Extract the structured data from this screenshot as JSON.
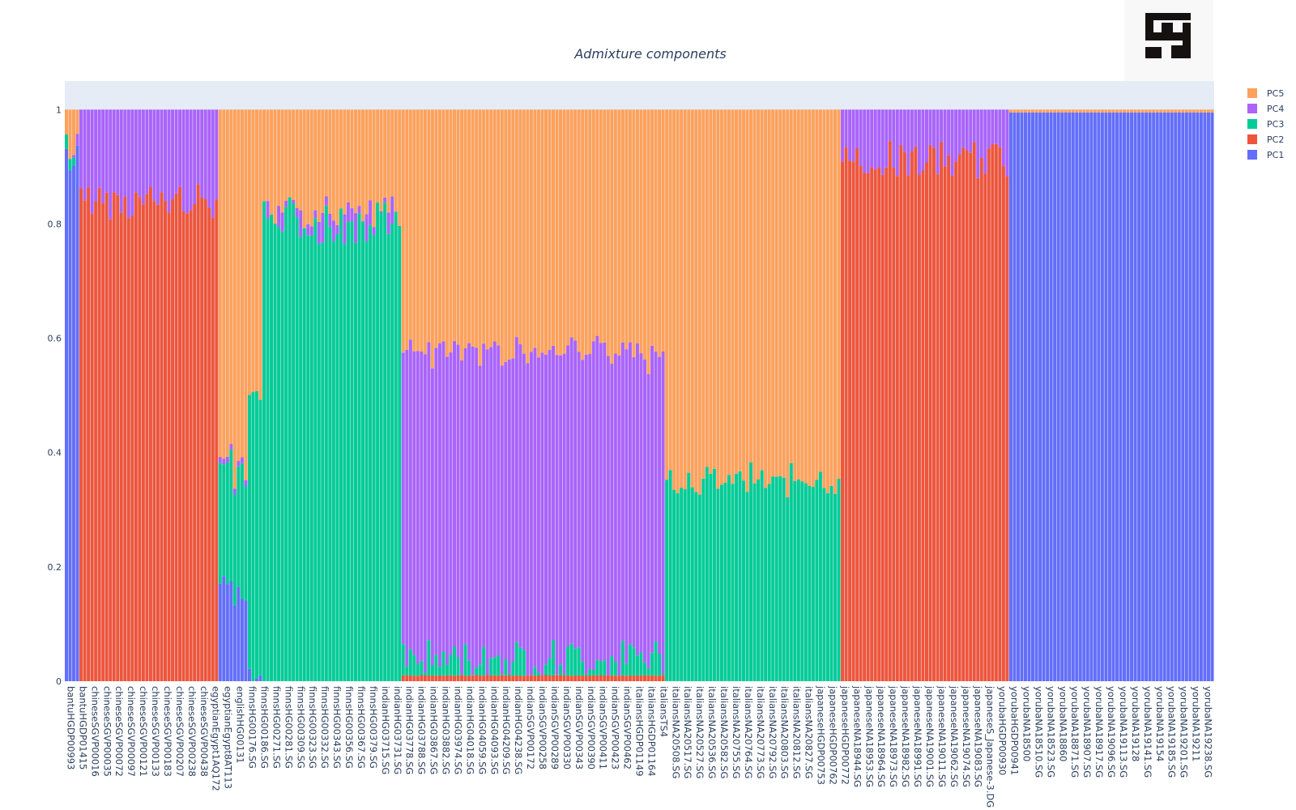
{
  "colors": {
    "PC1": "#636efa",
    "PC2": "#ef553b",
    "PC3": "#00cc96",
    "PC4": "#ab63fa",
    "PC5": "#ffa15a",
    "plot_bg": "#e5ecf6",
    "text": "#2a3f5f"
  },
  "logo": {
    "icon": "logo-icon"
  },
  "chart_data": {
    "type": "bar",
    "stacked": true,
    "title": "Admixture components",
    "xlabel": "",
    "ylabel": "",
    "ylim": [
      0,
      1.05
    ],
    "yticks": [
      {
        "value": 0,
        "label": "0"
      },
      {
        "value": 0.2,
        "label": "0.2"
      },
      {
        "value": 0.4,
        "label": "0.4"
      },
      {
        "value": 0.6,
        "label": "0.6"
      },
      {
        "value": 0.8,
        "label": "0.8"
      },
      {
        "value": 1,
        "label": "1"
      }
    ],
    "legend_position": "top-right",
    "legend_order": [
      "PC5",
      "PC4",
      "PC3",
      "PC2",
      "PC1"
    ],
    "series_names": [
      "PC1",
      "PC2",
      "PC3",
      "PC4",
      "PC5"
    ],
    "visible_tick_labels": [
      "bantuHGDP00993",
      "bantuHGDP01415",
      "chineseSGVP00016",
      "chineseSGVP00035",
      "chineseSGVP00072",
      "chineseSGVP00097",
      "chineseSGVP00121",
      "chineseSGVP00133",
      "chineseSGVP00183",
      "chineseSGVP00207",
      "chineseSGVP00238",
      "chineseSGVP00438",
      "egyptianEgypt1AQ172",
      "egyptianEgypt8AT113",
      "englishHG00131",
      "finnsHG00176.SG",
      "finnsHG00186.SG",
      "finnsHG00271.SG",
      "finnsHG00281.SG",
      "finnsHG00309.SG",
      "finnsHG00323.SG",
      "finnsHG00332.SG",
      "finnsHG00343.SG",
      "finnsHG00356.SG",
      "finnsHG00367.SG",
      "finnsHG00379.SG",
      "indianHG03715.SG",
      "indianHG03731.SG",
      "indianHG03778.SG",
      "indianHG03788.SG",
      "indianHG03867.SG",
      "indianHG03882.SG",
      "indianHG03974.SG",
      "indianHG04018.SG",
      "indianHG04059.SG",
      "indianHG04093.SG",
      "indianHG04209.SG",
      "indianHG04238.SG",
      "indianSGVP00172",
      "indianSGVP00258",
      "indianSGVP00289",
      "indianSGVP00330",
      "indianSGVP00343",
      "indianSGVP00390",
      "indianSGVP00411",
      "indianSGVP00423",
      "indianSGVP00462",
      "italiansHGDP01149",
      "italiansHGDP01164",
      "italiansTS4",
      "italiansNA20508.SG",
      "italiansNA20517.SG",
      "italiansNA20527.SG",
      "italiansNA20536.SG",
      "italiansNA20582.SG",
      "italiansNA20755.SG",
      "italiansNA20764.SG",
      "italiansNA20773.SG",
      "italiansNA20792.SG",
      "italiansNA20803.SG",
      "italiansNA20812.SG",
      "italiansNA20827.SG",
      "japaneseHGDP00753",
      "japaneseHGDP00762",
      "japaneseHGDP00772",
      "japaneseNA18944.SG",
      "japaneseNA18953.SG",
      "japaneseNA18964.SG",
      "japaneseNA18973.SG",
      "japaneseNA18982.SG",
      "japaneseNA18991.SG",
      "japaneseNA19001.SG",
      "japaneseNA19011.SG",
      "japaneseNA19062.SG",
      "japaneseNA19074.SG",
      "japaneseNA19083.SG",
      "japaneseS_Japanese-3.DG",
      "yorubaHGDP00930",
      "yorubaHGDP00941",
      "yorubaNA18500",
      "yorubaNA18510.SG",
      "yorubaNA18523.SG",
      "yorubaNA18860",
      "yorubaNA18871.SG",
      "yorubaNA18907.SG",
      "yorubaNA18917.SG",
      "yorubaNA19096.SG",
      "yorubaNA19113.SG",
      "yorubaNA19128",
      "yorubaNA19141.SG",
      "yorubaNA19154",
      "yorubaNA19185.SG",
      "yorubaNA19201.SG",
      "yorubaNA19211",
      "yorubaNA19238.SG"
    ],
    "groups": [
      {
        "population": "bantu",
        "n_samples": 4,
        "mean": {
          "PC1": 0.9,
          "PC2": 0.0,
          "PC3": 0.02,
          "PC4": 0.02,
          "PC5": 0.06
        }
      },
      {
        "population": "chinese",
        "n_samples": 38,
        "mean": {
          "PC1": 0.0,
          "PC2": 0.84,
          "PC3": 0.0,
          "PC4": 0.16,
          "PC5": 0.0
        }
      },
      {
        "population": "egyptian",
        "n_samples": 8,
        "mean": {
          "PC1": 0.16,
          "PC2": 0.0,
          "PC3": 0.21,
          "PC4": 0.01,
          "PC5": 0.62
        }
      },
      {
        "population": "english",
        "n_samples": 4,
        "mean": {
          "PC1": 0.02,
          "PC2": 0.0,
          "PC3": 0.48,
          "PC4": 0.0,
          "PC5": 0.5
        }
      },
      {
        "population": "finns",
        "n_samples": 38,
        "mean": {
          "PC1": 0.0,
          "PC2": 0.0,
          "PC3": 0.8,
          "PC4": 0.02,
          "PC5": 0.18
        }
      },
      {
        "population": "indian",
        "n_samples": 72,
        "mean": {
          "PC1": 0.0,
          "PC2": 0.01,
          "PC3": 0.03,
          "PC4": 0.54,
          "PC5": 0.42
        }
      },
      {
        "population": "italians",
        "n_samples": 48,
        "mean": {
          "PC1": 0.0,
          "PC2": 0.0,
          "PC3": 0.35,
          "PC4": 0.0,
          "PC5": 0.65
        }
      },
      {
        "population": "japanese",
        "n_samples": 46,
        "mean": {
          "PC1": 0.0,
          "PC2": 0.91,
          "PC3": 0.0,
          "PC4": 0.09,
          "PC5": 0.0
        }
      },
      {
        "population": "yoruba",
        "n_samples": 56,
        "mean": {
          "PC1": 0.995,
          "PC2": 0.0,
          "PC3": 0.0,
          "PC4": 0.0,
          "PC5": 0.005
        }
      }
    ]
  }
}
